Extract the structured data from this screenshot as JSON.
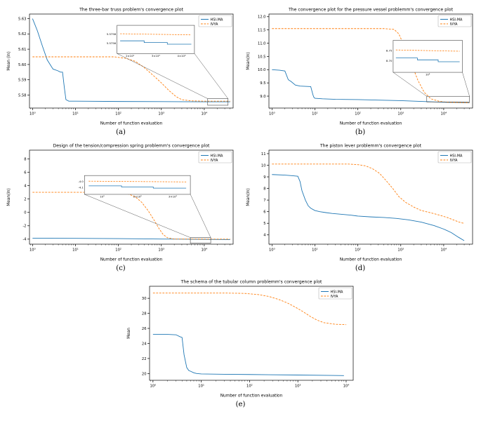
{
  "palette": {
    "hsi_ma": "#1f77b4",
    "ivya": "#ff7f0e",
    "axis": "#000000",
    "background": "#ffffff"
  },
  "chart_data": [
    {
      "caption": "(a)",
      "type": "line",
      "title": "The three-bar truss problem's convergence plot",
      "xlabel": "Number of function evaluation",
      "ylabel": "Mean (ln)",
      "xscale": "log",
      "xlim": [
        0.85,
        47000
      ],
      "ylim": [
        5.5715,
        5.633
      ],
      "xticks": [
        1,
        10,
        100,
        1000,
        10000
      ],
      "xtick_labels": [
        "10⁰",
        "10¹",
        "10²",
        "10³",
        "10⁴"
      ],
      "yticks": [
        5.58,
        5.59,
        5.6,
        5.61,
        5.62,
        5.63
      ],
      "ytick_labels": [
        "5.58",
        "5.59",
        "5.60",
        "5.61",
        "5.62",
        "5.63"
      ],
      "legend": {
        "position": "top-right",
        "entries": [
          "HSI-MA",
          "IVYA"
        ]
      },
      "series": [
        {
          "name": "HSI-MA",
          "color": "#1f77b4",
          "style": "solid",
          "x": [
            1,
            1.3,
            1.7,
            2.2,
            3,
            3.8,
            4.5,
            5,
            5.5,
            6,
            7,
            10,
            100,
            1000,
            10000,
            40000
          ],
          "y": [
            5.63,
            5.622,
            5.612,
            5.603,
            5.597,
            5.596,
            5.595,
            5.595,
            5.585,
            5.577,
            5.576,
            5.576,
            5.5758,
            5.5757,
            5.5756,
            5.5756
          ]
        },
        {
          "name": "IVYA",
          "color": "#ff7f0e",
          "style": "dashed",
          "x": [
            1,
            10,
            80,
            150,
            250,
            400,
            700,
            1000,
            1500,
            2200,
            3000,
            5000,
            10000,
            40000
          ],
          "y": [
            5.605,
            5.605,
            5.605,
            5.604,
            5.602,
            5.598,
            5.592,
            5.588,
            5.583,
            5.579,
            5.577,
            5.5762,
            5.576,
            5.576
          ]
        }
      ],
      "inset": {
        "x": 0.43,
        "y": 0.12,
        "w": 0.38,
        "h": 0.3,
        "ytick_labels": [
          "5.5758",
          "5.5756"
        ],
        "xtick_labels": [
          "2×10⁴",
          "3×10⁴",
          "4×10⁴"
        ],
        "src": {
          "x": 0.875,
          "y": 0.9,
          "w": 0.1,
          "h": 0.07
        }
      }
    },
    {
      "caption": "(b)",
      "type": "line",
      "title": "The convergence plot for the pressure vessel problemm's convergence plot",
      "xlabel": "Number of function evaluation",
      "ylabel": "Mean(ln)",
      "xscale": "log",
      "xlim": [
        0.85,
        47000
      ],
      "ylim": [
        8.55,
        12.1
      ],
      "xticks": [
        1,
        10,
        100,
        1000,
        10000
      ],
      "xtick_labels": [
        "10⁰",
        "10¹",
        "10²",
        "10³",
        "10⁴"
      ],
      "yticks": [
        9.0,
        9.5,
        10.0,
        10.5,
        11.0,
        11.5,
        12.0
      ],
      "ytick_labels": [
        "9.0",
        "9.5",
        "10.0",
        "10.5",
        "11.0",
        "11.5",
        "12.0"
      ],
      "legend": {
        "position": "top-right",
        "entries": [
          "HSI-MA",
          "IVYA"
        ]
      },
      "series": [
        {
          "name": "HSI-MA",
          "color": "#1f77b4",
          "style": "solid",
          "x": [
            1,
            1.5,
            2,
            2.4,
            2.8,
            3.5,
            4.5,
            6,
            8,
            9,
            9.5,
            10,
            15,
            30,
            100,
            300,
            1000,
            3000,
            10000,
            40000
          ],
          "y": [
            10.0,
            9.98,
            9.95,
            9.62,
            9.55,
            9.42,
            9.38,
            9.37,
            9.36,
            9.05,
            8.95,
            8.92,
            8.9,
            8.88,
            8.87,
            8.85,
            8.83,
            8.8,
            8.77,
            8.75
          ]
        },
        {
          "name": "IVYA",
          "color": "#ff7f0e",
          "style": "dashed",
          "x": [
            1,
            100,
            400,
            700,
            900,
            1200,
            1800,
            2500,
            3500,
            5000,
            8000,
            12000,
            20000,
            40000
          ],
          "y": [
            11.55,
            11.55,
            11.55,
            11.52,
            11.35,
            10.9,
            10.2,
            9.6,
            9.15,
            8.9,
            8.8,
            8.77,
            8.76,
            8.75
          ]
        }
      ],
      "inset": {
        "x": 0.61,
        "y": 0.28,
        "w": 0.34,
        "h": 0.34,
        "ytick_labels": [
          "8.75",
          "8.70"
        ],
        "xtick_labels": [
          "10⁴"
        ],
        "src": {
          "x": 0.775,
          "y": 0.875,
          "w": 0.21,
          "h": 0.06
        }
      }
    },
    {
      "caption": "(c)",
      "type": "line",
      "title": "Design of the tension/compression spring problemm's convergence plot",
      "xlabel": "Number of function evaluation",
      "ylabel": "Mean(ln)",
      "xscale": "log",
      "xlim": [
        0.85,
        47000
      ],
      "ylim": [
        -4.75,
        9.3
      ],
      "xticks": [
        1,
        10,
        100,
        1000,
        10000
      ],
      "xtick_labels": [
        "10⁰",
        "10¹",
        "10²",
        "10³",
        "10⁴"
      ],
      "yticks": [
        -4,
        -2,
        0,
        2,
        4,
        6,
        8
      ],
      "ytick_labels": [
        "-4",
        "-2",
        "0",
        "2",
        "4",
        "6",
        "8"
      ],
      "legend": {
        "position": "top-right",
        "entries": [
          "HSI-MA",
          "IVYA"
        ]
      },
      "series": [
        {
          "name": "HSI-MA",
          "color": "#1f77b4",
          "style": "solid",
          "x": [
            1,
            10,
            100,
            1000,
            10000,
            40000
          ],
          "y": [
            -3.85,
            -3.88,
            -3.92,
            -3.98,
            -4.03,
            -4.06
          ]
        },
        {
          "name": "IVYA",
          "color": "#ff7f0e",
          "style": "dashed",
          "x": [
            1,
            30,
            80,
            130,
            180,
            250,
            350,
            500,
            700,
            900,
            1100,
            1400,
            2000,
            40000
          ],
          "y": [
            3.0,
            3.0,
            2.97,
            2.88,
            2.7,
            2.3,
            1.5,
            0.2,
            -1.3,
            -2.5,
            -3.3,
            -3.8,
            -3.98,
            -4.0
          ]
        }
      ],
      "inset": {
        "x": 0.27,
        "y": 0.27,
        "w": 0.52,
        "h": 0.2,
        "ytick_labels": [
          "-4.0",
          "-4.1"
        ],
        "xtick_labels": [
          "10³",
          "2×10³",
          "3×10³"
        ],
        "src": {
          "x": 0.79,
          "y": 0.93,
          "w": 0.1,
          "h": 0.06
        }
      }
    },
    {
      "caption": "(d)",
      "type": "line",
      "title": "The piston lever problemm's convergence plot",
      "xlabel": "Number of function evaluation",
      "ylabel": "Mean(ln)",
      "xscale": "log",
      "xlim": [
        0.85,
        47000
      ],
      "ylim": [
        3.2,
        11.3
      ],
      "xticks": [
        1,
        10,
        100,
        1000,
        10000
      ],
      "xtick_labels": [
        "10⁰",
        "10¹",
        "10²",
        "10³",
        "10⁴"
      ],
      "yticks": [
        4,
        5,
        6,
        7,
        8,
        9,
        10,
        11
      ],
      "ytick_labels": [
        "4",
        "5",
        "6",
        "7",
        "8",
        "9",
        "10",
        "11"
      ],
      "legend": {
        "position": "top-right",
        "entries": [
          "HSI-MA",
          "IVYA"
        ]
      },
      "series": [
        {
          "name": "HSI-MA",
          "color": "#1f77b4",
          "style": "solid",
          "x": [
            1,
            2,
            3,
            4,
            4.5,
            5,
            6,
            7,
            8,
            10,
            13,
            18,
            25,
            40,
            70,
            100,
            200,
            400,
            800,
            1500,
            3000,
            6000,
            10000,
            15000,
            22000,
            30000
          ],
          "y": [
            9.2,
            9.15,
            9.1,
            9.05,
            8.6,
            7.8,
            7.0,
            6.5,
            6.3,
            6.1,
            6.0,
            5.92,
            5.85,
            5.78,
            5.7,
            5.62,
            5.55,
            5.5,
            5.42,
            5.3,
            5.1,
            4.8,
            4.5,
            4.2,
            3.8,
            3.5
          ]
        },
        {
          "name": "IVYA",
          "color": "#ff7f0e",
          "style": "dashed",
          "x": [
            1,
            10,
            60,
            100,
            150,
            220,
            320,
            450,
            650,
            900,
            1300,
            2000,
            3000,
            5000,
            8000,
            12000,
            18000,
            25000,
            30000
          ],
          "y": [
            10.1,
            10.1,
            10.1,
            10.05,
            9.95,
            9.7,
            9.3,
            8.7,
            8.0,
            7.3,
            6.8,
            6.4,
            6.1,
            5.9,
            5.7,
            5.5,
            5.25,
            5.05,
            5.0
          ]
        }
      ],
      "inset": null
    },
    {
      "caption": "(e)",
      "type": "line",
      "title": "The schema of the tubular column problemm's convergence plot",
      "xlabel": "Number of function evaluation",
      "ylabel": "Mean",
      "xscale": "log",
      "xlim": [
        0.85,
        14000
      ],
      "ylim": [
        19.1,
        31.6
      ],
      "xticks": [
        1,
        10,
        100,
        1000,
        10000
      ],
      "xtick_labels": [
        "10⁰",
        "10¹",
        "10²",
        "10³",
        "10⁴"
      ],
      "yticks": [
        20,
        22,
        24,
        26,
        28,
        30
      ],
      "ytick_labels": [
        "20",
        "22",
        "24",
        "26",
        "28",
        "30"
      ],
      "legend": {
        "position": "top-right",
        "entries": [
          "HSI-MA",
          "IVYA"
        ]
      },
      "series": [
        {
          "name": "HSI-MA",
          "color": "#1f77b4",
          "style": "solid",
          "x": [
            1,
            2,
            3,
            3.6,
            4,
            4.4,
            5,
            5.5,
            6,
            7,
            8,
            10,
            30,
            100,
            1000,
            5000,
            9000
          ],
          "y": [
            25.2,
            25.2,
            25.15,
            24.9,
            24.8,
            22.5,
            20.8,
            20.4,
            20.3,
            20.1,
            20.0,
            19.95,
            19.9,
            19.87,
            19.8,
            19.75,
            19.72
          ]
        },
        {
          "name": "IVYA",
          "color": "#ff7f0e",
          "style": "dashed",
          "x": [
            1,
            30,
            80,
            150,
            250,
            400,
            600,
            900,
            1300,
            1800,
            2500,
            3500,
            6000,
            10000
          ],
          "y": [
            30.7,
            30.7,
            30.65,
            30.5,
            30.25,
            29.85,
            29.4,
            28.8,
            28.2,
            27.6,
            27.1,
            26.75,
            26.55,
            26.5
          ]
        }
      ],
      "inset": null
    }
  ]
}
